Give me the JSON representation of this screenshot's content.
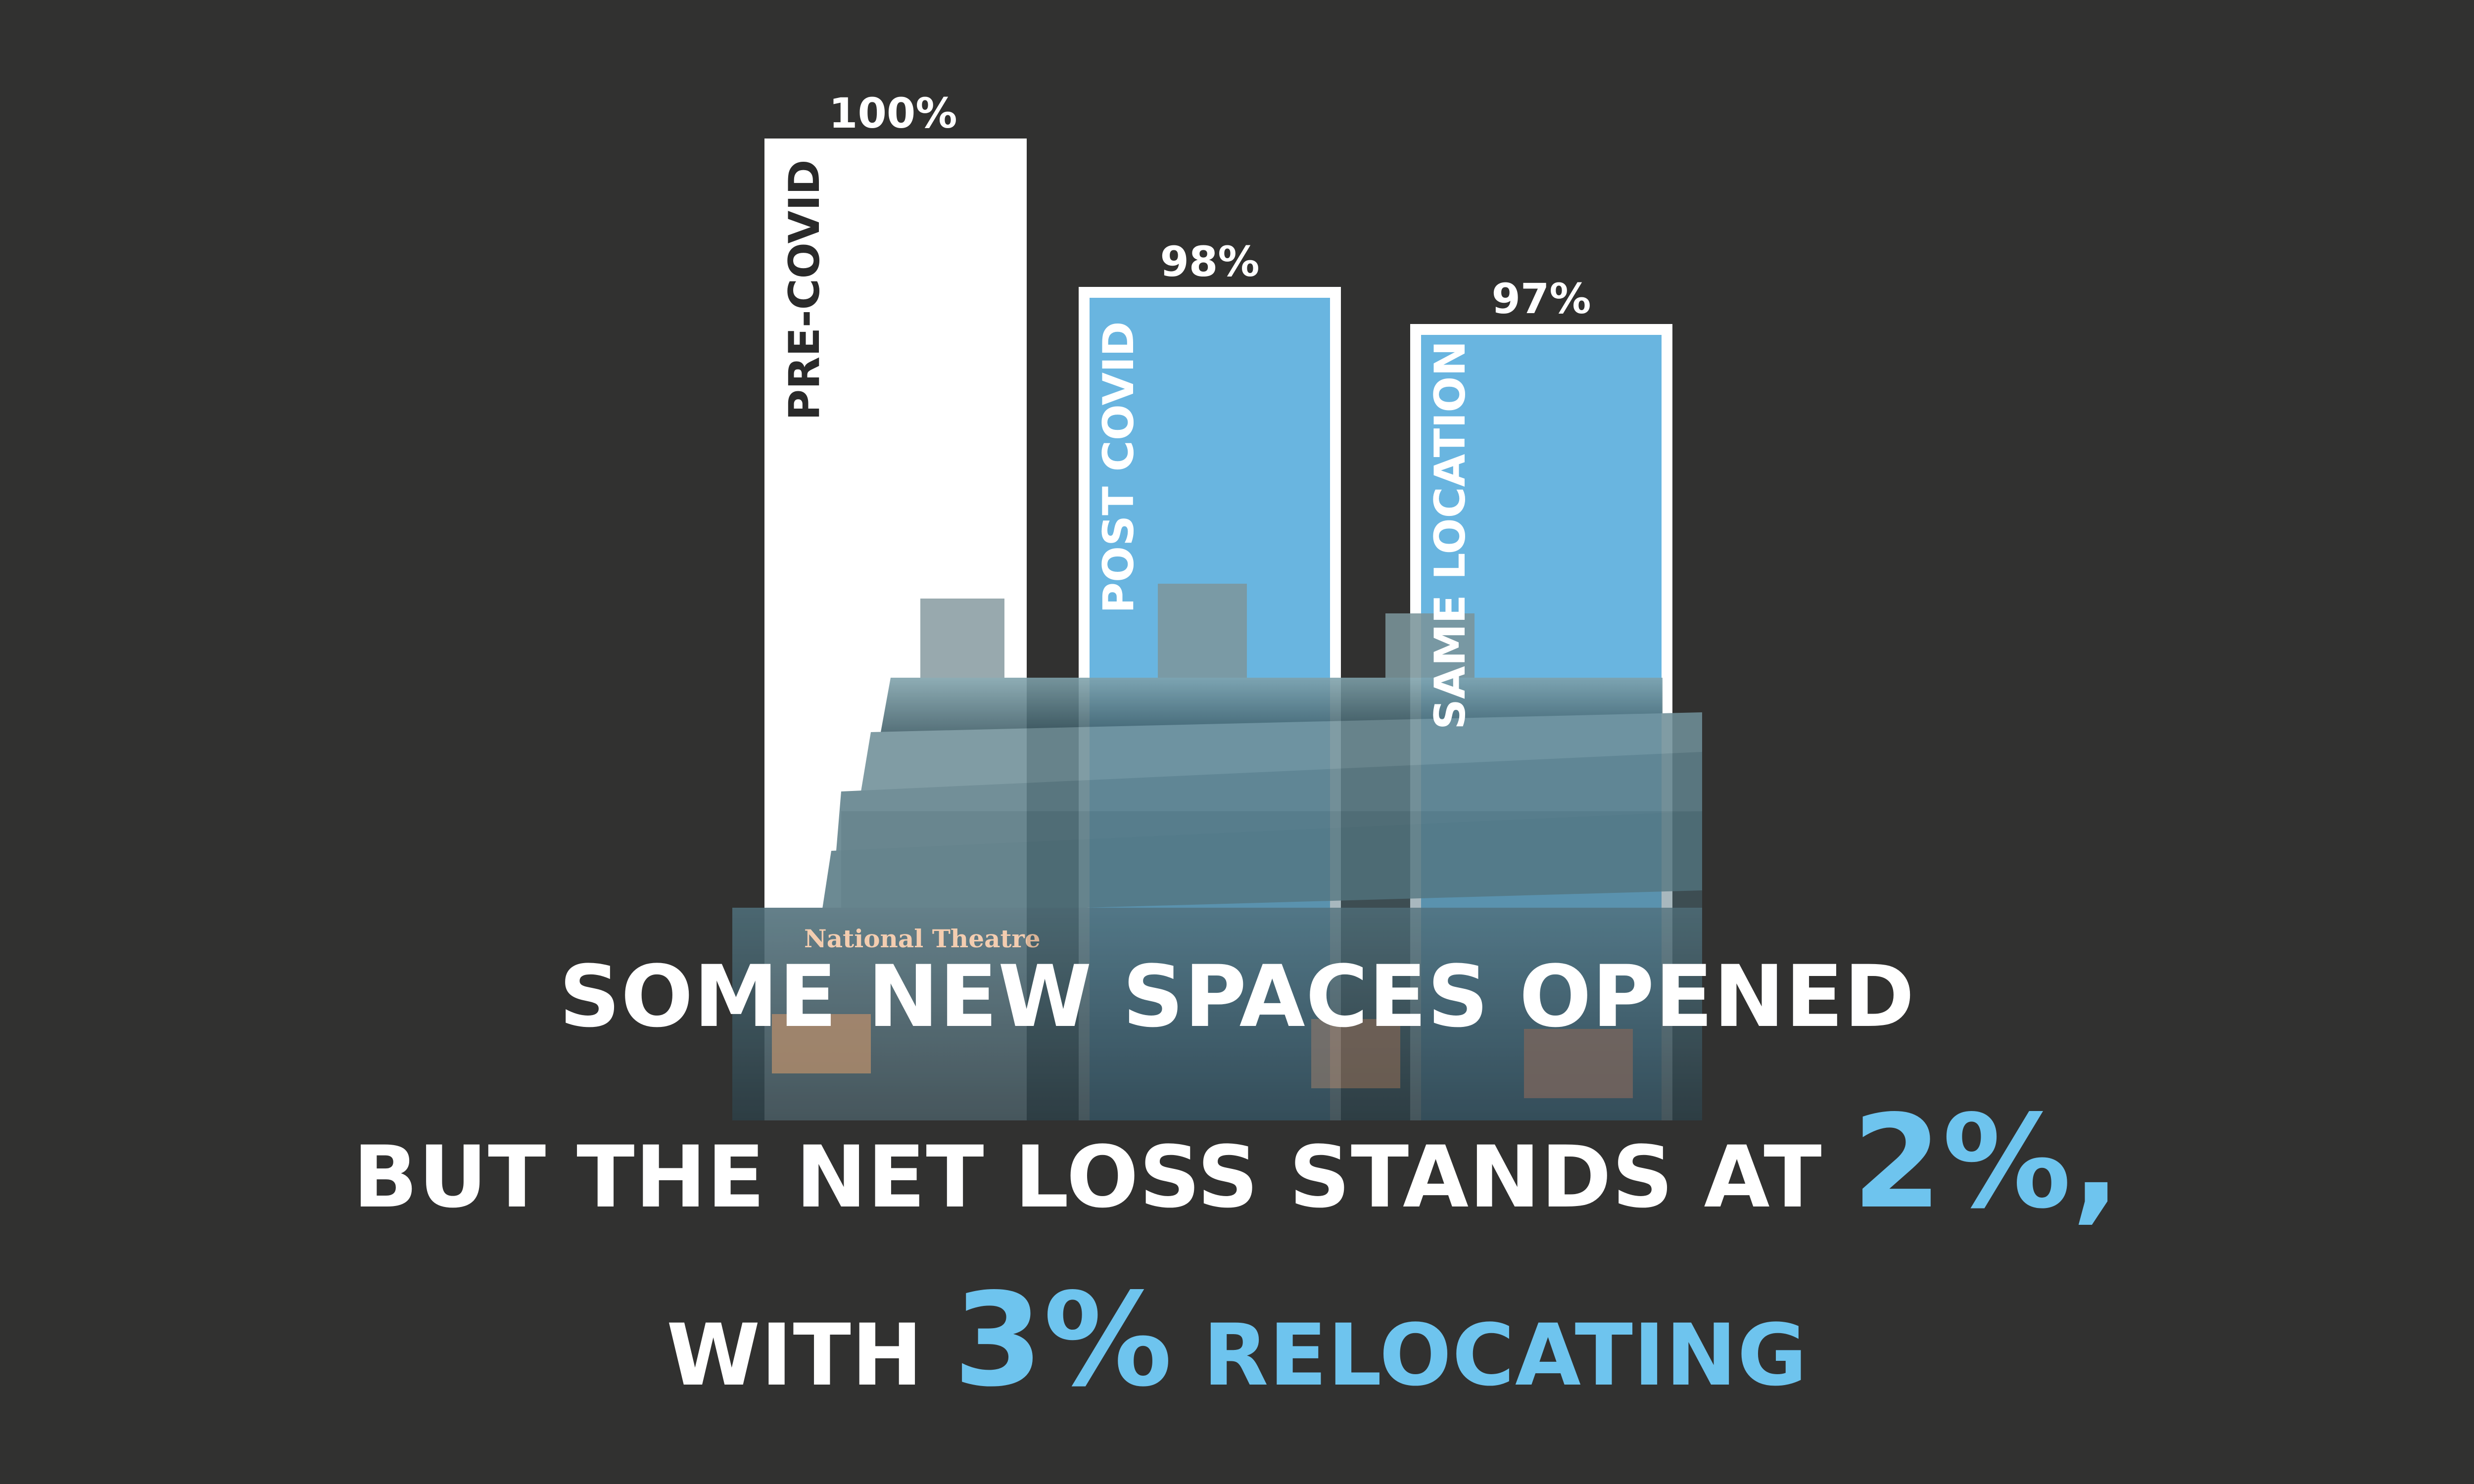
{
  "chart_data": {
    "type": "bar",
    "categories": [
      "PRE-COVID",
      "POST COVID",
      "SAME LOCATION"
    ],
    "values": [
      100,
      98,
      97
    ],
    "value_labels": [
      "100%",
      "98%",
      "97%"
    ],
    "ylim": [
      0,
      100
    ],
    "grid": false,
    "legend": "none"
  },
  "colors": {
    "background": "#313130",
    "bar_primary": "#ffffff",
    "bar_accent": "#69b5e0",
    "accent_text": "#6ec4ee",
    "photo_tint": "#5e8e9c"
  },
  "headline": {
    "line1": "SOME NEW SPACES OPENED",
    "line2_prefix": "BUT THE NET LOSS STANDS AT",
    "line2_value": "2%,",
    "line3_prefix": "WITH",
    "line3_value": "3%",
    "line3_suffix": "RELOCATING"
  },
  "photo": {
    "sign_text": "National Theatre"
  }
}
